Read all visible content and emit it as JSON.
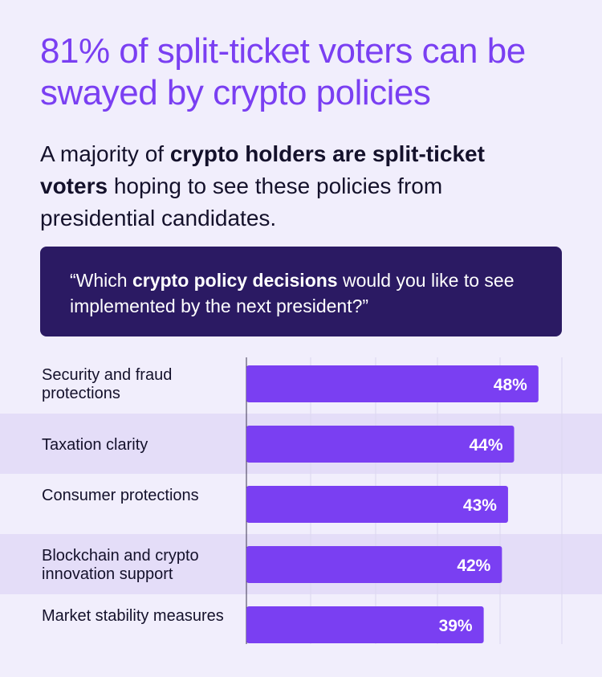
{
  "header": {
    "title": "81% of split-ticket voters can be swayed by crypto policies",
    "subtitle_parts": [
      {
        "text": "A majority of ",
        "bold": false
      },
      {
        "text": "crypto holders are split-ticket voters",
        "bold": true
      },
      {
        "text": " hoping to see these policies from presidential candidates.",
        "bold": false
      }
    ]
  },
  "question": {
    "parts": [
      {
        "text": "“Which ",
        "bold": false
      },
      {
        "text": "crypto policy decisions",
        "bold": true
      },
      {
        "text": " would you like to see implemented by the next president?”",
        "bold": false
      }
    ]
  },
  "colors": {
    "bar": "#7a3ff2",
    "title": "#7a3ff2",
    "question_bg": "#2b1a63",
    "band": "#e4ddf8",
    "background": "#f1eefc"
  },
  "chart_data": {
    "type": "bar",
    "orientation": "horizontal",
    "categories": [
      "Security and fraud protections",
      "Taxation clarity",
      "Consumer protections",
      "Blockchain and crypto innovation support",
      "Market stability measures"
    ],
    "values": [
      48,
      44,
      43,
      42,
      39
    ],
    "value_labels": [
      "48%",
      "44%",
      "43%",
      "42%",
      "39%"
    ],
    "unit": "%",
    "xlim": [
      0,
      52
    ],
    "grid": true,
    "legend": "none"
  }
}
